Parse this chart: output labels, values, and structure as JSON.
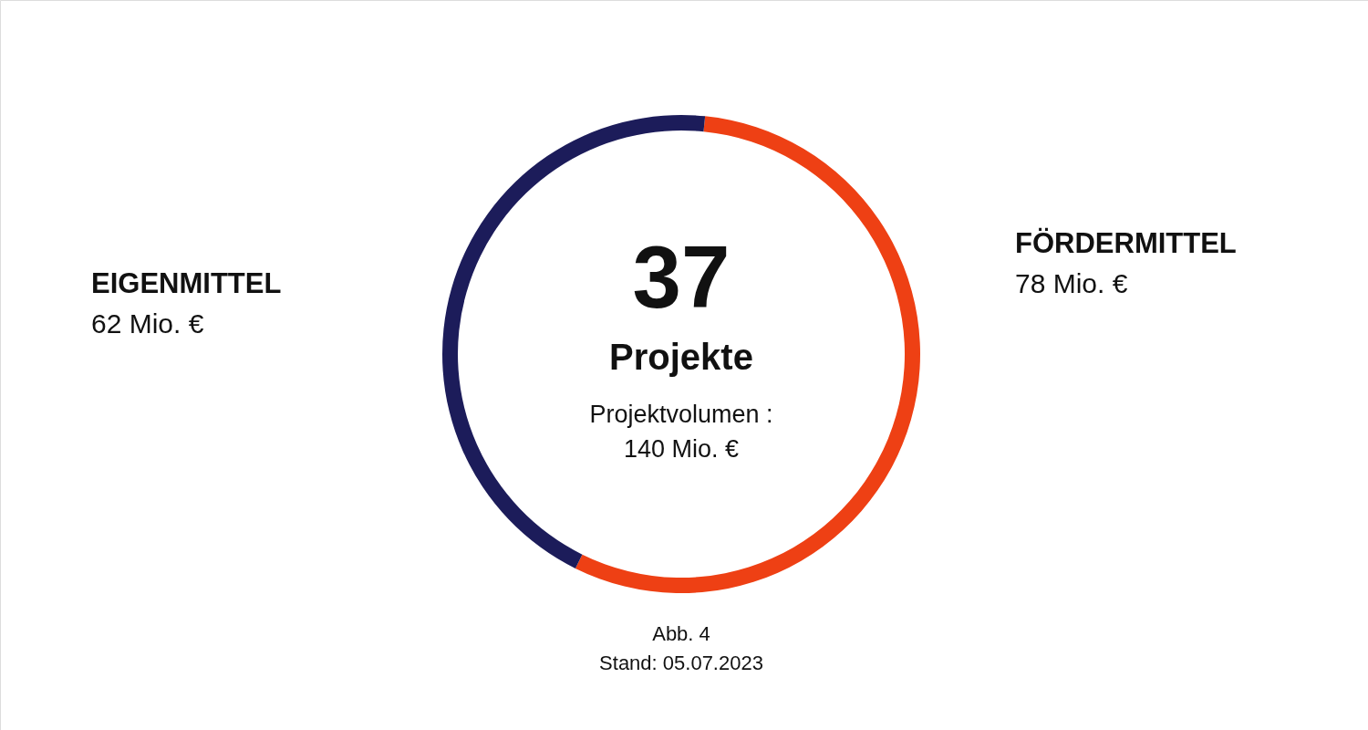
{
  "chart_data": {
    "type": "donut",
    "categories": [
      "FÖRDERMITTEL",
      "EIGENMITTEL"
    ],
    "values": [
      78,
      62
    ],
    "colors": [
      "#ee4014",
      "#1c1c5a"
    ],
    "value_labels": [
      "78 Mio. €",
      "62  Mio. €"
    ],
    "annotations": [
      "37",
      "Projekte",
      "Projektvolumen :",
      "140 Mio. €",
      "Abb. 4",
      "Stand: 05.07.2023"
    ]
  }
}
